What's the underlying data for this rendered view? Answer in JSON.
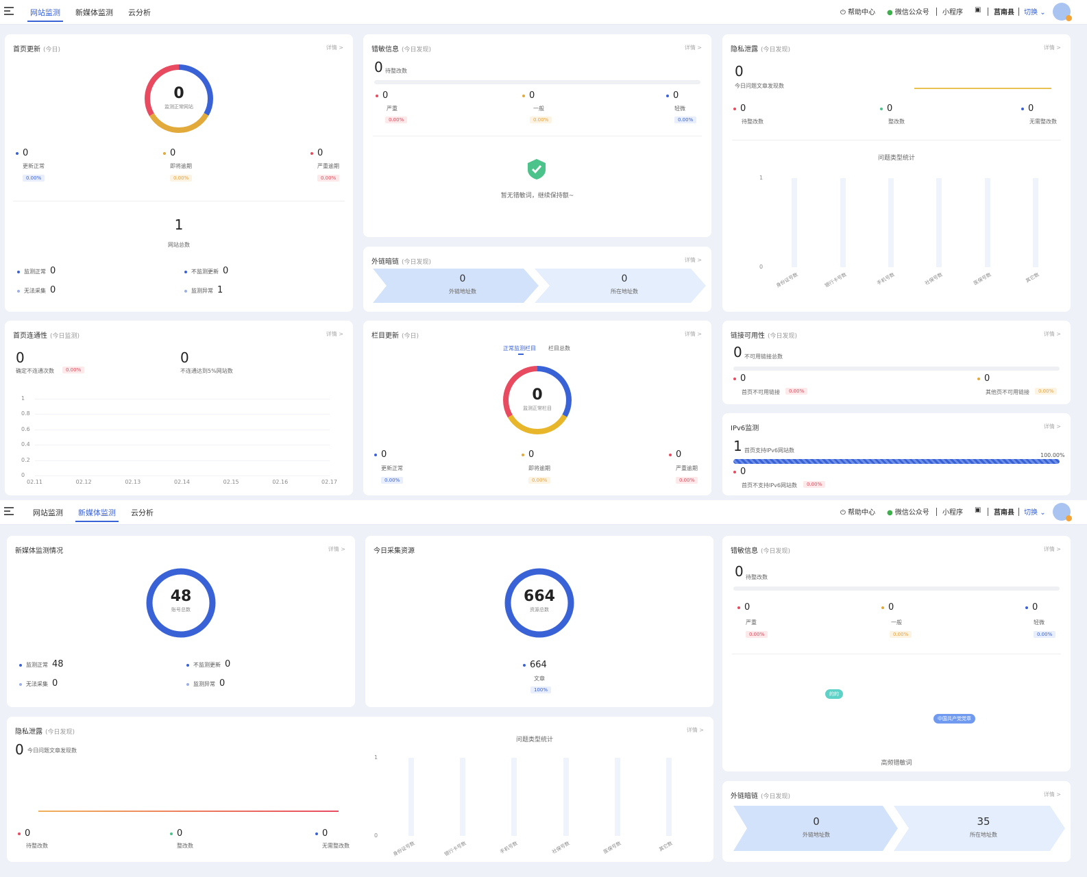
{
  "nav": {
    "tabs": [
      "网站监测",
      "新媒体监测",
      "云分析"
    ],
    "help": "帮助中心",
    "wechat": "微信公众号",
    "mini": "小程序",
    "county": "莒南县",
    "switch": "切换"
  },
  "more": "详情 >",
  "s1": {
    "homepage_update": {
      "title": "首页更新",
      "sub": "(今日)",
      "ring_value": "0",
      "ring_label": "监测正常网站",
      "stats": [
        {
          "value": "0",
          "label": "更新正常",
          "pct": "0.00%"
        },
        {
          "value": "0",
          "label": "即将逾期",
          "pct": "0.00%"
        },
        {
          "value": "0",
          "label": "严重逾期",
          "pct": "0.00%"
        }
      ],
      "total_value": "1",
      "total_label": "网站总数",
      "list": [
        {
          "label": "监测正常",
          "value": "0"
        },
        {
          "label": "不监测更新",
          "value": "0"
        },
        {
          "label": "无法采集",
          "value": "0"
        },
        {
          "label": "监测异常",
          "value": "1"
        }
      ]
    },
    "sensitive": {
      "title": "错敏信息",
      "sub": "(今日发现)",
      "main_value": "0",
      "main_label": "待整改数",
      "stats": [
        {
          "value": "0",
          "label": "严重",
          "pct": "0.00%"
        },
        {
          "value": "0",
          "label": "一般",
          "pct": "0.00%"
        },
        {
          "value": "0",
          "label": "轻微",
          "pct": "0.00%"
        }
      ],
      "empty": "暂无错敏词，继续保持额~"
    },
    "external_links": {
      "title": "外链暗链",
      "sub": "(今日发现)",
      "a_value": "0",
      "a_label": "外链地址数",
      "b_value": "0",
      "b_label": "所在地址数"
    },
    "privacy": {
      "title": "隐私泄露",
      "sub": "(今日发现)",
      "main_value": "0",
      "main_label": "今日问题文章发现数",
      "stats": [
        {
          "value": "0",
          "label": "待整改数"
        },
        {
          "value": "0",
          "label": "整改数"
        },
        {
          "value": "0",
          "label": "无需整改数"
        }
      ],
      "chart_title": "问题类型统计"
    },
    "connectivity": {
      "title": "首页连通性",
      "sub": "(今日监测)",
      "a_value": "0",
      "a_label": "确定不连通次数",
      "a_pct": "0.00%",
      "b_value": "0",
      "b_label": "不连通达到5%网站数"
    },
    "column_update": {
      "title": "栏目更新",
      "sub": "(今日)",
      "tab_a": "正常监测栏目",
      "tab_b": "栏目总数",
      "ring_value": "0",
      "ring_label": "监测正常栏目",
      "stats": [
        {
          "value": "0",
          "label": "更新正常",
          "pct": "0.00%"
        },
        {
          "value": "0",
          "label": "即将逾期",
          "pct": "0.00%"
        },
        {
          "value": "0",
          "label": "严重逾期",
          "pct": "0.00%"
        }
      ]
    },
    "link_avail": {
      "title": "链接可用性",
      "sub": "(今日发现)",
      "main_value": "0",
      "main_label": "不可用链接总数",
      "a_value": "0",
      "a_label": "首页不可用链接",
      "a_pct": "0.00%",
      "b_value": "0",
      "b_label": "其他页不可用链接",
      "b_pct": "0.00%"
    },
    "ipv6": {
      "title": "IPv6监测",
      "a_value": "1",
      "a_label": "首页支持IPv6网站数",
      "a_pct": "100.00%",
      "b_value": "0",
      "b_label": "首页不支持IPv6网站数",
      "b_pct": "0.00%"
    }
  },
  "s2": {
    "media": {
      "title": "新媒体监测情况",
      "ring_value": "48",
      "ring_label": "账号总数",
      "list": [
        {
          "label": "监测正常",
          "value": "48"
        },
        {
          "label": "不监测更新",
          "value": "0"
        },
        {
          "label": "无法采集",
          "value": "0"
        },
        {
          "label": "监测异常",
          "value": "0"
        }
      ]
    },
    "resources": {
      "title": "今日采集资源",
      "ring_value": "664",
      "ring_label": "资源总数",
      "item_value": "664",
      "item_label": "文章",
      "item_pct": "100%"
    },
    "sensitive": {
      "title": "错敏信息",
      "sub": "(今日发现)",
      "main_value": "0",
      "main_label": "待整改数",
      "stats": [
        {
          "value": "0",
          "label": "严重",
          "pct": "0.00%"
        },
        {
          "value": "0",
          "label": "一般",
          "pct": "0.00%"
        },
        {
          "value": "0",
          "label": "轻微",
          "pct": "0.00%"
        }
      ],
      "tag_a": "的的",
      "tag_b": "中国共产党党章",
      "cloud_title": "高频错敏词"
    },
    "privacy": {
      "title": "隐私泄露",
      "sub": "(今日发现)",
      "main_value": "0",
      "main_label": "今日问题文章发现数",
      "stats": [
        {
          "value": "0",
          "label": "待整改数"
        },
        {
          "value": "0",
          "label": "整改数"
        },
        {
          "value": "0",
          "label": "无需整改数"
        }
      ],
      "chart_title": "问题类型统计"
    },
    "external_links": {
      "title": "外链暗链",
      "sub": "(今日发现)",
      "a_value": "0",
      "a_label": "外链地址数",
      "b_value": "35",
      "b_label": "所在地址数"
    }
  },
  "chart_data": [
    {
      "type": "bar",
      "title": "问题类型统计",
      "categories": [
        "身份证号数",
        "银行卡号数",
        "手机号数",
        "社保号数",
        "医保号数",
        "其它数"
      ],
      "values": [
        0,
        0,
        0,
        0,
        0,
        0
      ],
      "ylim": [
        0,
        1
      ],
      "yticks": [
        "1",
        "0"
      ]
    },
    {
      "type": "line",
      "categories": [
        "02.11",
        "02.12",
        "02.13",
        "02.14",
        "02.15",
        "02.16",
        "02.17"
      ],
      "values": [
        0,
        0,
        0,
        0,
        0,
        0,
        0
      ],
      "ylim": [
        0,
        1
      ],
      "yticks": [
        "1",
        "0.8",
        "0.6",
        "0.4",
        "0.2",
        "0"
      ]
    },
    {
      "type": "bar",
      "title": "问题类型统计",
      "categories": [
        "身份证号数",
        "银行卡号数",
        "手机号数",
        "社保号数",
        "医保号数",
        "其它数"
      ],
      "values": [
        0,
        0,
        0,
        0,
        0,
        0
      ],
      "ylim": [
        0,
        1
      ],
      "yticks": [
        "1",
        "0"
      ]
    }
  ],
  "colors": {
    "blue": "#3a62d7",
    "orange": "#e2a93b",
    "red": "#e84a5f",
    "green": "#4cc38a"
  }
}
